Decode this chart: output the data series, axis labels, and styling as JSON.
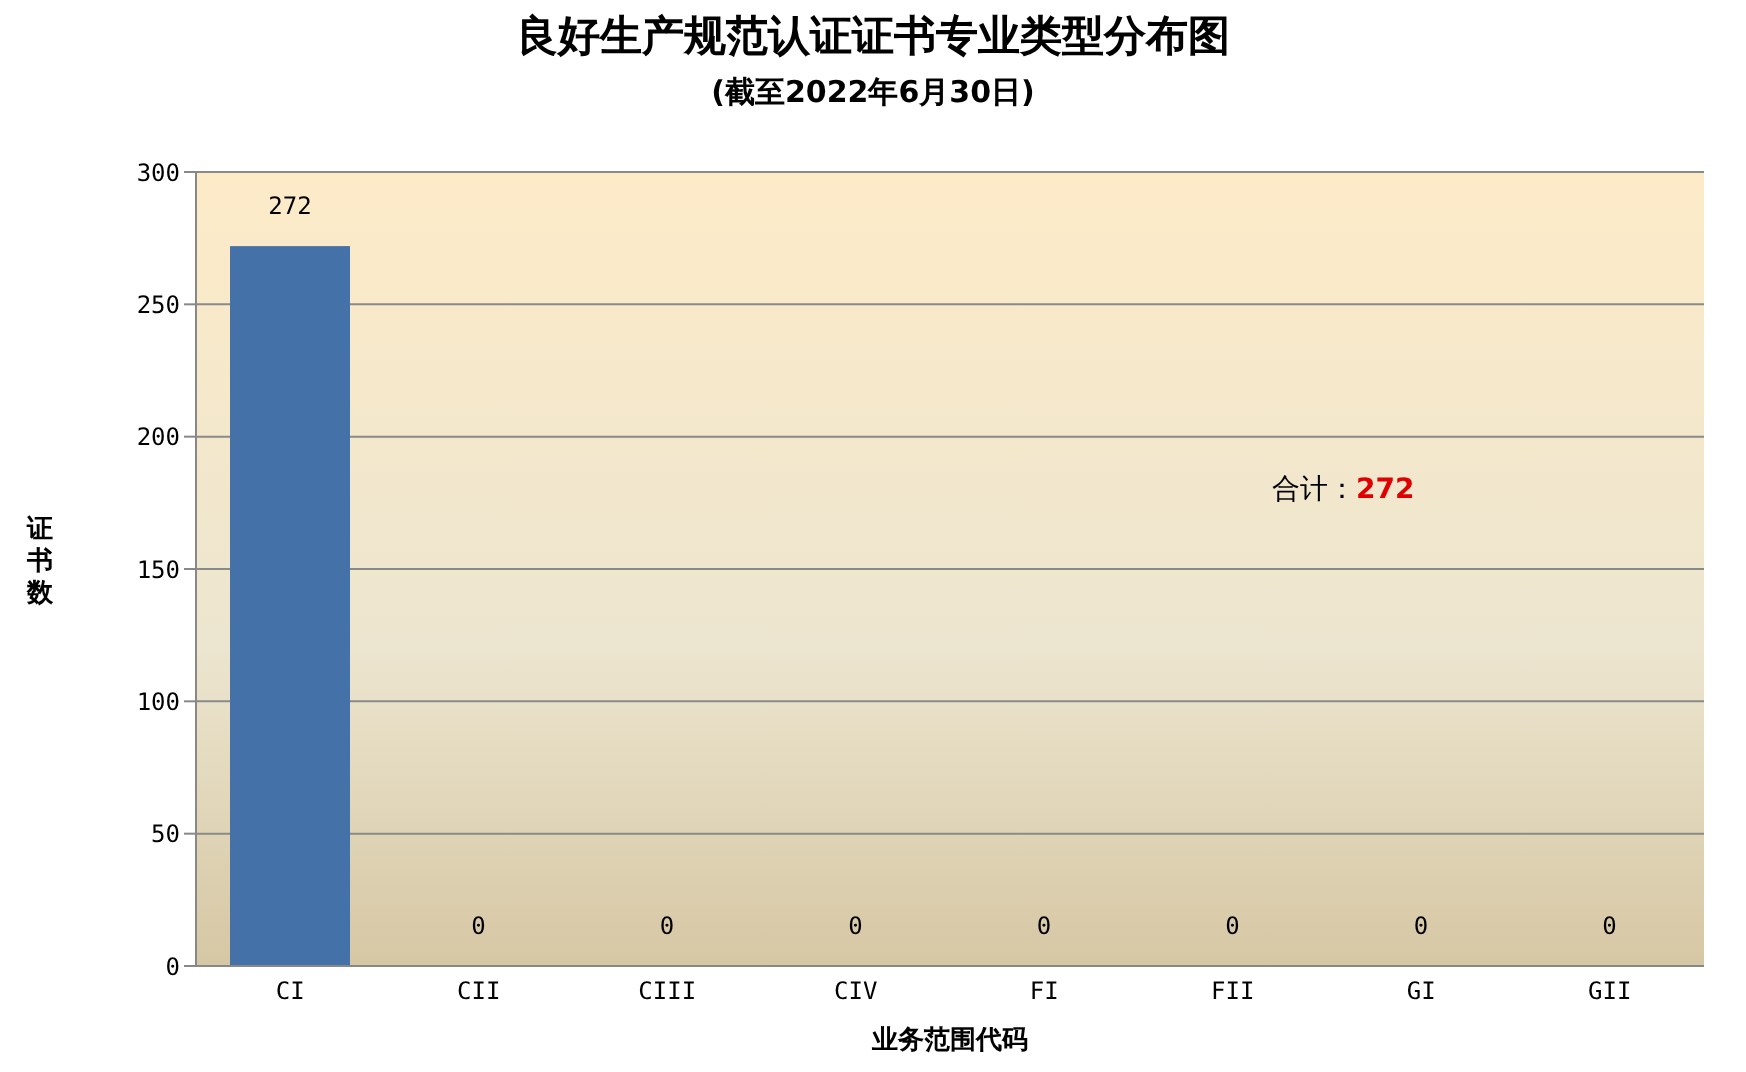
{
  "chart_data": {
    "type": "bar",
    "title": "良好生产规范认证证书专业类型分布图",
    "subtitle": "(截至2022年6月30日)",
    "xlabel": "业务范围代码",
    "ylabel": "证书数",
    "categories": [
      "CI",
      "CII",
      "CIII",
      "CIV",
      "FI",
      "FII",
      "GI",
      "GII"
    ],
    "values": [
      272,
      0,
      0,
      0,
      0,
      0,
      0,
      0
    ],
    "color": "#4472a8",
    "ylim": [
      0,
      300
    ],
    "yticks": [
      0,
      50,
      100,
      150,
      200,
      250,
      300
    ],
    "grid": "y",
    "data_labels": true,
    "annotations": [
      "合计：272"
    ]
  }
}
